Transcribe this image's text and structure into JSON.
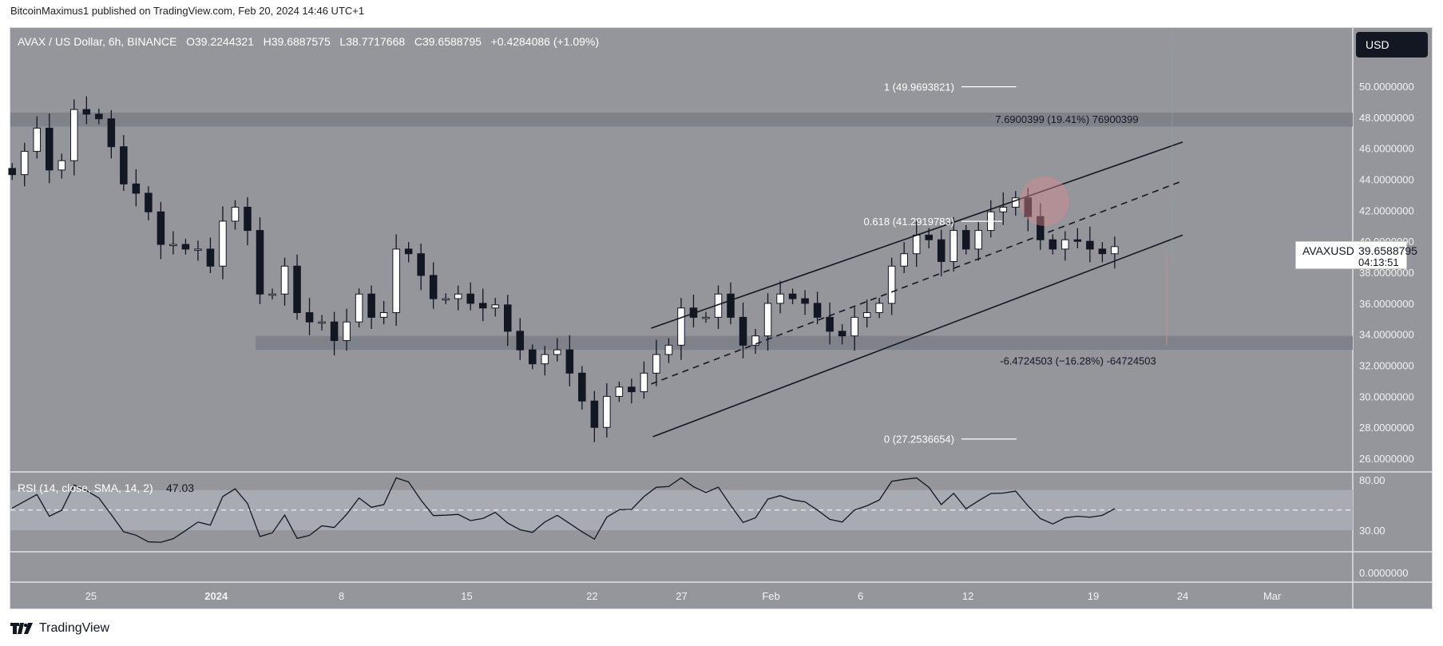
{
  "publisher_line": "BitcoinMaximus1 published on TradingView.com, Feb 20, 2024 14:46 UTC+1",
  "legend": {
    "symbol": "AVAX / US Dollar, 6h, BINANCE",
    "o": "O39.2244321",
    "h": "H39.6887575",
    "l": "L38.7717668",
    "c": "C39.6588795",
    "change": "+0.4284086 (+1.09%)"
  },
  "currency_button": "USD",
  "price_label": {
    "symbol": "AVAXUSD",
    "price": "39.6588795",
    "countdown": "04:13:51"
  },
  "footer": {
    "brand": "TradingView"
  },
  "colors": {
    "background": "#94969c",
    "candle_down": "#131722",
    "candle_up": "#ffffff",
    "circle": "#d98a8f"
  },
  "chart_data": [
    {
      "type": "candlestick",
      "title": "AVAX / US Dollar, 6h, BINANCE",
      "ylim": [
        25.2,
        51.7
      ],
      "y_ticks": [
        "50.0000000",
        "48.0000000",
        "46.0000000",
        "44.0000000",
        "42.0000000",
        "40.0000000",
        "38.0000000",
        "36.0000000",
        "34.0000000",
        "32.0000000",
        "30.0000000",
        "28.0000000",
        "26.0000000"
      ],
      "y_tick_values": [
        50,
        48,
        46,
        44,
        42,
        40,
        38,
        36,
        34,
        32,
        30,
        28,
        26
      ],
      "x_ticks": [
        "25",
        "2024",
        "8",
        "15",
        "22",
        "27",
        "Feb",
        "6",
        "12",
        "19",
        "24",
        "Mar"
      ],
      "x_tick_days": [
        0,
        7,
        14,
        21,
        28,
        33,
        38,
        43,
        49,
        56,
        61,
        66
      ],
      "x_range_days": [
        -4.5,
        70.5
      ],
      "first_close_day": -4.4,
      "last_close_day": 57.2,
      "closes": [
        44.3,
        45.8,
        47.3,
        44.6,
        45.2,
        48.5,
        48.2,
        47.9,
        46.1,
        43.7,
        43.1,
        41.9,
        39.8,
        39.8,
        39.5,
        39.5,
        38.4,
        41.3,
        42.2,
        40.7,
        36.6,
        36.6,
        38.4,
        35.4,
        34.8,
        34.8,
        33.6,
        34.8,
        36.6,
        35.1,
        35.4,
        39.5,
        39.2,
        37.8,
        36.3,
        36.3,
        36.6,
        36.0,
        35.7,
        35.9,
        34.2,
        33.0,
        32.1,
        32.7,
        33.0,
        31.5,
        29.7,
        28.0,
        30.0,
        30.6,
        30.3,
        31.5,
        32.7,
        33.3,
        35.7,
        35.1,
        35.1,
        36.6,
        35.1,
        33.3,
        33.9,
        36.0,
        36.6,
        36.3,
        36.0,
        35.1,
        34.2,
        33.9,
        35.1,
        35.4,
        36.0,
        38.4,
        39.2,
        40.4,
        40.1,
        38.7,
        40.7,
        39.5,
        40.7,
        41.9,
        42.2,
        42.8,
        41.6,
        40.1,
        39.5,
        40.1,
        40.0,
        39.5,
        39.2,
        39.66
      ],
      "zones": [
        {
          "name": "resistance",
          "from": 47.4,
          "to": 48.3
        },
        {
          "name": "support",
          "from": 33.0,
          "to": 33.9
        }
      ],
      "fib": [
        {
          "label": "1 (49.9693821)",
          "value": 49.9693821
        },
        {
          "label": "0.618 (41.2919783)",
          "value": 41.2919783
        },
        {
          "label": "0 (27.2536654)",
          "value": 27.2536654
        }
      ],
      "measures": [
        {
          "label": "7.6900399 (19.41%) 76900399",
          "value": 47.9
        },
        {
          "label": "-6.4724503 (−16.28%) -64724503",
          "value": 32.3
        }
      ],
      "channel": {
        "upper": [
          [
            31.3,
            34.4
          ],
          [
            61,
            46.4
          ]
        ],
        "middle": [
          [
            31.3,
            30.8
          ],
          [
            61,
            43.9
          ]
        ],
        "lower": [
          [
            31.4,
            27.4
          ],
          [
            61,
            40.4
          ]
        ]
      }
    },
    {
      "type": "line",
      "title": "RSI (14, close, SMA, 14, 2)",
      "value_label": "47.03",
      "ylim": [
        0,
        100
      ],
      "y_ticks": [
        "80.00",
        "30.00"
      ],
      "y_tick_values": [
        80,
        30
      ],
      "band": [
        30,
        70
      ],
      "midline": 50
    }
  ],
  "third_pane": {
    "y_tick": "0.0000000"
  }
}
